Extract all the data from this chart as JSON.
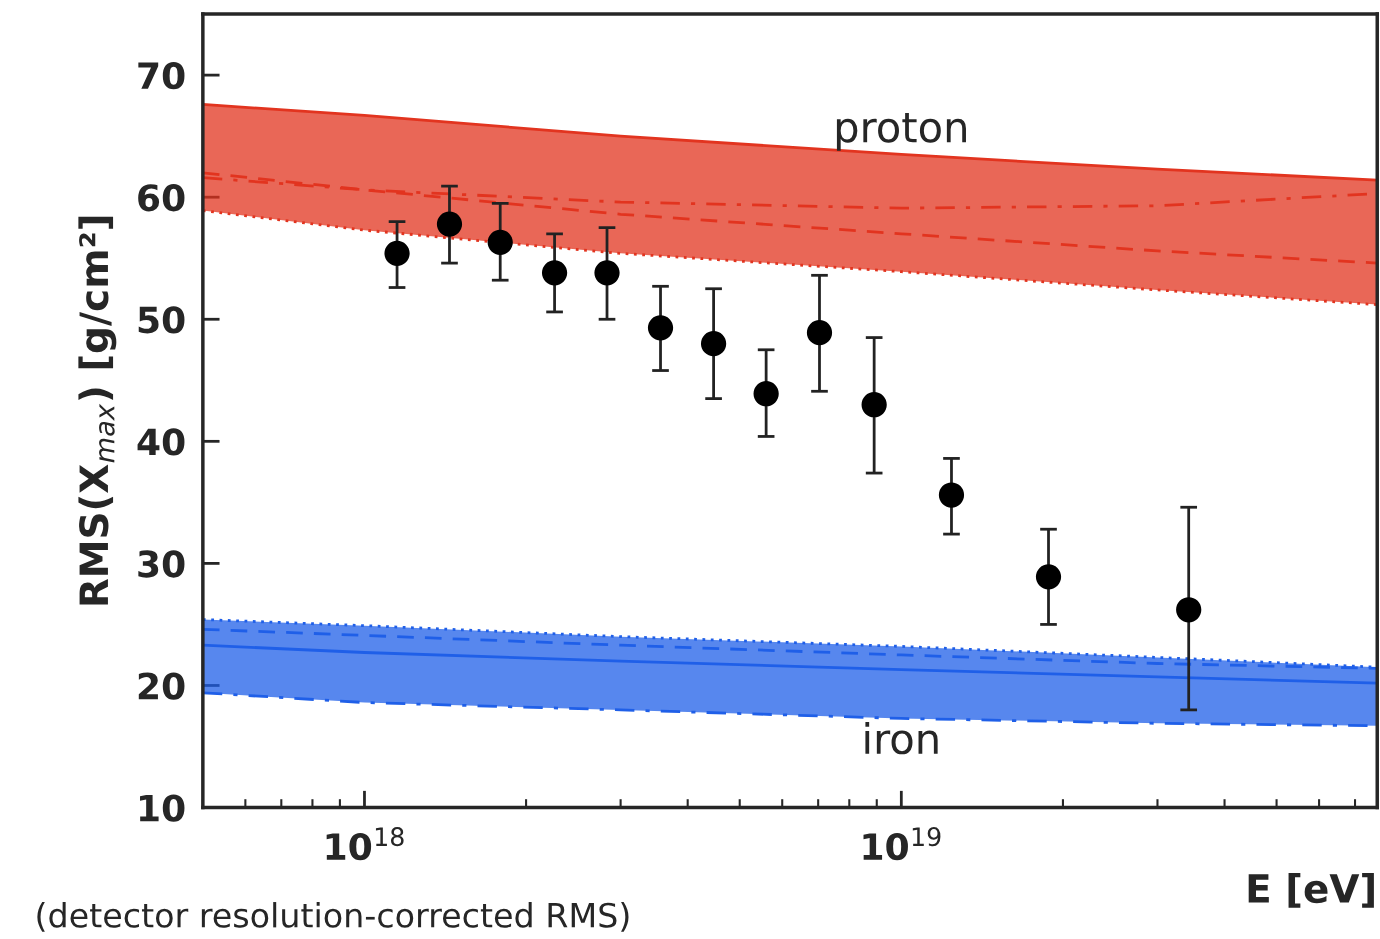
{
  "chart_data": {
    "type": "line",
    "xlabel": "E [eV]",
    "ylabel": "RMS(X$_{max}$) [g/cm²]",
    "log": "x",
    "grid": false,
    "xlim": [
      5e+17,
      7.7e+19
    ],
    "xticks": [
      {
        "value": 1e+18,
        "label": "10$^{18}$"
      },
      {
        "value": 1e+19,
        "label": "10$^{19}$"
      }
    ],
    "ylim": [
      10,
      75
    ],
    "yticks": [
      10,
      20,
      30,
      40,
      50,
      60,
      70
    ],
    "annotations": [
      "(detector resolution-corrected RMS)"
    ],
    "series": [
      {
        "name": "proton",
        "line_style": "solid",
        "color": "#e2341f",
        "x": [
          5e+17,
          1e+18,
          3e+18,
          1e+19,
          3e+19,
          7.7e+19
        ],
        "values": [
          67.6,
          66.7,
          65.0,
          63.5,
          62.3,
          61.4
        ],
        "lower": [
          58.9,
          57.3,
          55.4,
          53.9,
          52.4,
          51.2
        ],
        "upper": [
          67.6,
          66.7,
          65.0,
          63.5,
          62.3,
          61.4
        ]
      },
      {
        "line_style": "dotted",
        "color": "#e2341f",
        "x": [
          5e+17,
          1e+18,
          3e+18,
          1e+19,
          3e+19,
          7.7e+19
        ],
        "values": [
          58.9,
          57.3,
          55.4,
          53.9,
          52.4,
          51.2
        ]
      },
      {
        "line_style": "dashed",
        "color": "#e2341f",
        "x": [
          5e+17,
          1e+18,
          3e+18,
          1e+19,
          3e+19,
          7.7e+19
        ],
        "values": [
          62.0,
          60.6,
          58.6,
          57.0,
          55.6,
          54.6
        ]
      },
      {
        "line_style": "dashdot",
        "color": "#e2341f",
        "x": [
          5e+17,
          1e+18,
          3e+18,
          1e+19,
          3e+19,
          7.7e+19
        ],
        "values": [
          61.6,
          60.6,
          59.6,
          59.1,
          59.3,
          60.3
        ]
      },
      {
        "name": "iron",
        "line_style": "dotted",
        "color": "#1f5fe8",
        "x": [
          5e+17,
          1e+18,
          3e+18,
          1e+19,
          3e+19,
          7.7e+19
        ],
        "values": [
          25.4,
          24.9,
          24.0,
          23.2,
          22.3,
          21.5
        ],
        "lower": [
          19.4,
          18.6,
          18.0,
          17.3,
          16.9,
          16.7
        ],
        "upper": [
          25.4,
          24.9,
          24.0,
          23.2,
          22.3,
          21.5
        ]
      },
      {
        "line_style": "solid",
        "color": "#1f5fe8",
        "x": [
          5e+17,
          1e+18,
          3e+18,
          1e+19,
          3e+19,
          7.7e+19
        ],
        "values": [
          23.3,
          22.7,
          22.0,
          21.3,
          20.7,
          20.2
        ]
      },
      {
        "line_style": "dashed",
        "color": "#1f5fe8",
        "x": [
          5e+17,
          1e+18,
          3e+18,
          1e+19,
          3e+19,
          7.7e+19
        ],
        "values": [
          24.6,
          24.1,
          23.3,
          22.5,
          21.8,
          21.4
        ]
      },
      {
        "line_style": "dashdot",
        "color": "#1f5fe8",
        "x": [
          5e+17,
          1e+18,
          3e+18,
          1e+19,
          3e+19,
          7.7e+19
        ],
        "values": [
          19.4,
          18.6,
          18.0,
          17.3,
          16.9,
          16.7
        ]
      },
      {
        "type": "scatter",
        "marker": "circle",
        "color": "#000000",
        "x": [
          1.15e+18,
          1.44e+18,
          1.79e+18,
          2.26e+18,
          2.83e+18,
          3.56e+18,
          4.47e+18,
          5.6e+18,
          7.04e+18,
          8.9e+18,
          1.24e+19,
          1.88e+19,
          3.43e+19
        ],
        "values": [
          55.4,
          57.8,
          56.3,
          53.8,
          53.8,
          49.3,
          48.0,
          43.9,
          48.9,
          43.0,
          35.6,
          28.9,
          26.2
        ],
        "errors": [
          [
            52.6,
            58.0
          ],
          [
            54.6,
            60.9
          ],
          [
            53.2,
            59.5
          ],
          [
            50.6,
            57.0
          ],
          [
            50.0,
            57.5
          ],
          [
            45.8,
            52.7
          ],
          [
            43.5,
            52.5
          ],
          [
            40.4,
            47.5
          ],
          [
            44.1,
            53.6
          ],
          [
            37.4,
            48.5
          ],
          [
            32.4,
            38.6
          ],
          [
            25.0,
            32.8
          ],
          [
            18.0,
            34.6
          ]
        ]
      }
    ]
  }
}
